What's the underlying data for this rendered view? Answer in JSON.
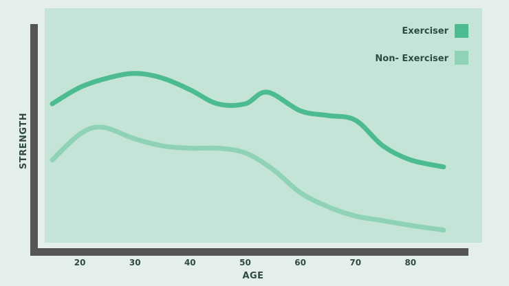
{
  "chart_data": {
    "type": "line",
    "xlabel": "AGE",
    "ylabel": "STRENGTH",
    "xlim": [
      12,
      96
    ],
    "ylim": [
      0,
      100
    ],
    "x_ticks": [
      20,
      30,
      40,
      50,
      60,
      70,
      80
    ],
    "grid": false,
    "legend_position": "top-right",
    "colors": {
      "background": "#e4efeb",
      "plot_area": "#c4e4d8",
      "axis": "#555555",
      "exerciser": "#4dbb90",
      "non_exerciser": "#8fd2b8"
    },
    "series": [
      {
        "name": "Exerciser",
        "color": "#4dbb90",
        "x": [
          15,
          20,
          25,
          30,
          35,
          40,
          45,
          50,
          54,
          60,
          65,
          70,
          75,
          80,
          86
        ],
        "y": [
          60,
          67,
          71,
          73,
          71,
          66,
          60,
          60,
          65,
          57,
          55,
          53,
          42,
          36,
          33
        ]
      },
      {
        "name": "Non- Exerciser",
        "color": "#8fd2b8",
        "x": [
          15,
          20,
          24,
          30,
          35,
          40,
          45,
          50,
          55,
          60,
          65,
          70,
          75,
          80,
          86
        ],
        "y": [
          36,
          47,
          50,
          45,
          42,
          41,
          41,
          39,
          32,
          22,
          16,
          12,
          10,
          8,
          6
        ]
      }
    ]
  }
}
